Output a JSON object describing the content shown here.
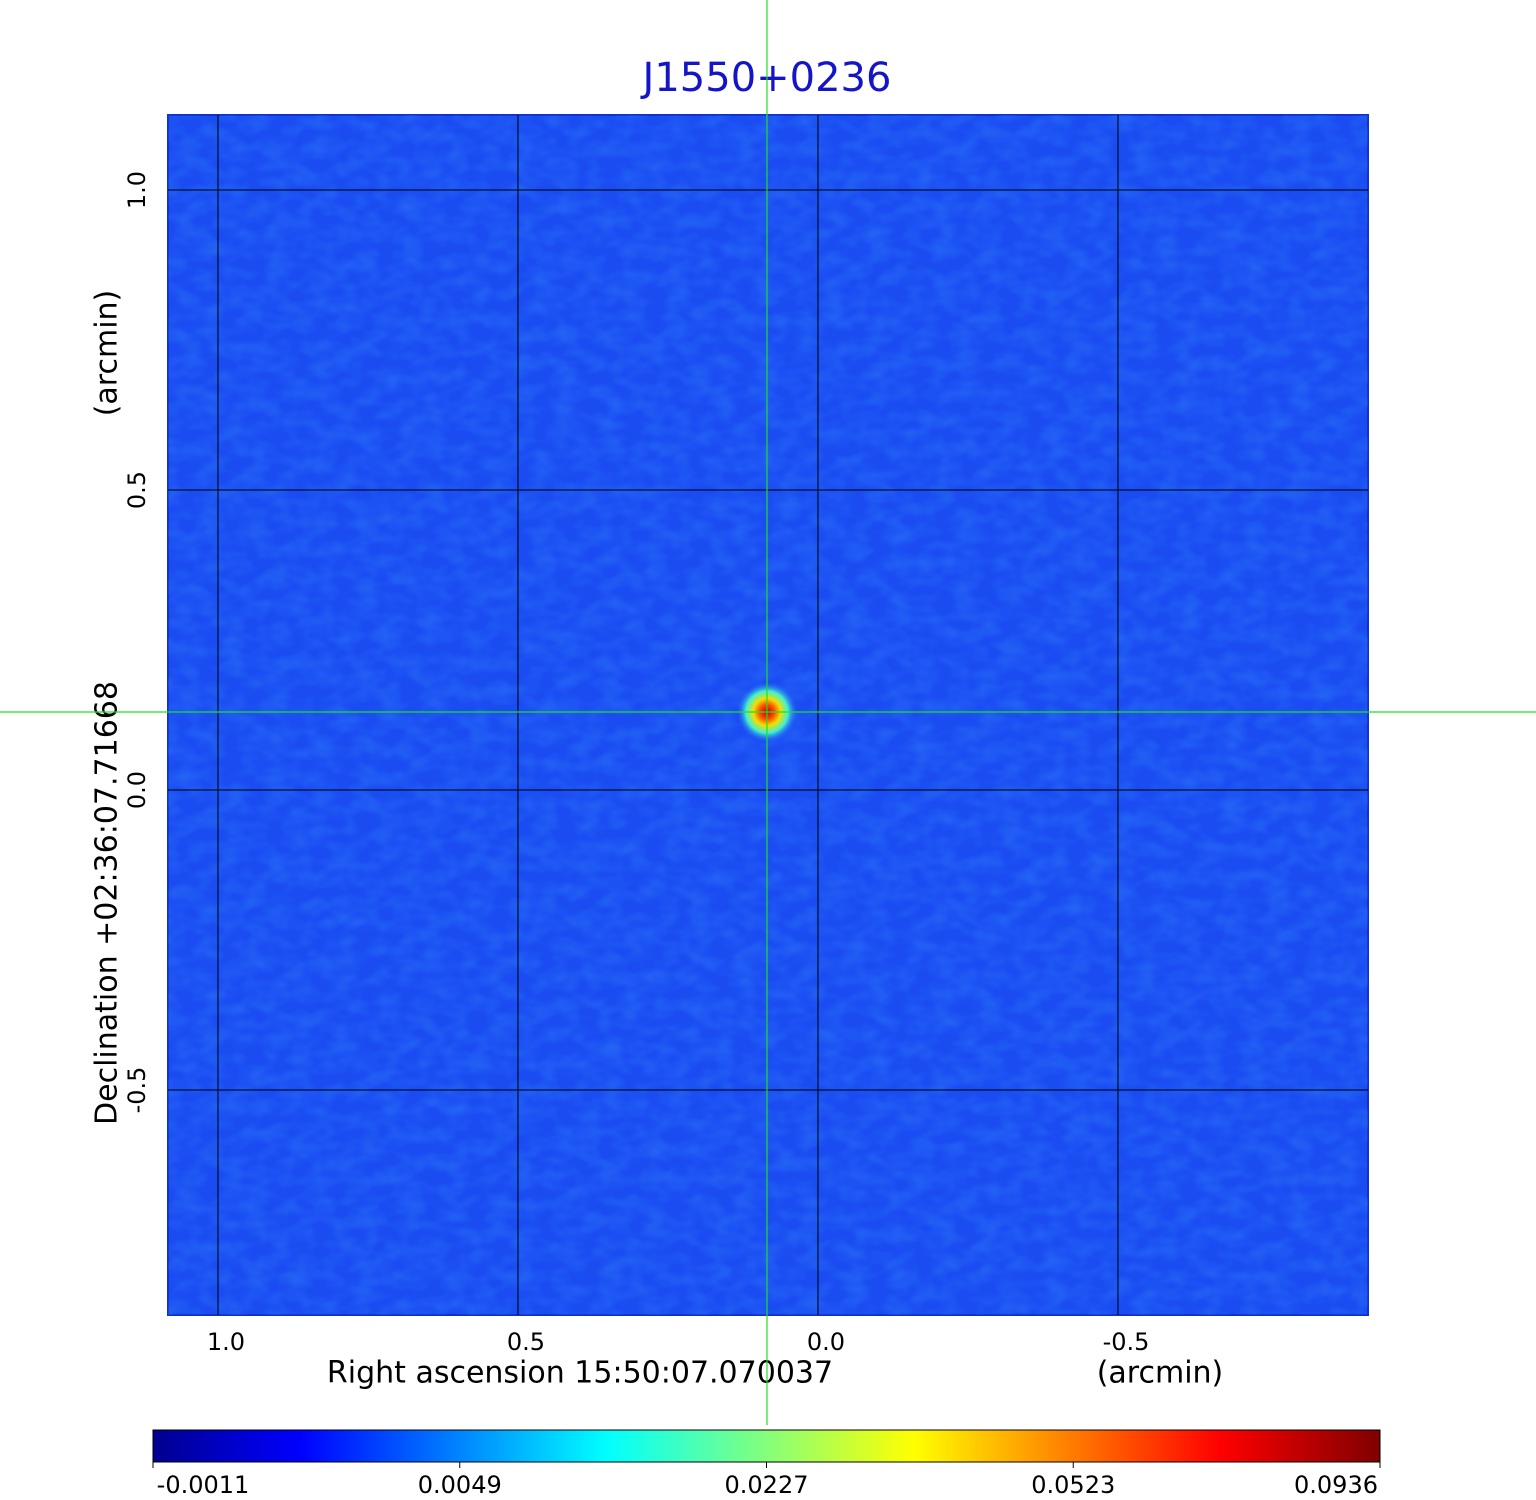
{
  "chart_data": {
    "type": "image",
    "title": "J1550+0236",
    "x_label": "Right ascension  15:50:07.070037",
    "x_unit": "(arcmin)",
    "y_label": "Declination  +02:36:07.71668",
    "y_unit": "(arcmin)",
    "xlim": [
      1.0833,
      -0.9167
    ],
    "ylim": [
      -0.875,
      1.125
    ],
    "xticks": [
      {
        "value": 1,
        "label": "1.0"
      },
      0.5,
      {
        "value": 0,
        "label": "0.0"
      },
      -0.5
    ],
    "yticks": [
      -0.5,
      {
        "value": 0,
        "label": "0.0"
      },
      0.5,
      {
        "value": 1,
        "label": "1.0"
      }
    ],
    "grid": true,
    "source": {
      "x": 0.085,
      "y": 0.13,
      "peak": 0.0936
    },
    "colorbar_ticks": [
      -0.0011,
      0.0049,
      0.0227,
      0.0523,
      0.0936
    ]
  }
}
